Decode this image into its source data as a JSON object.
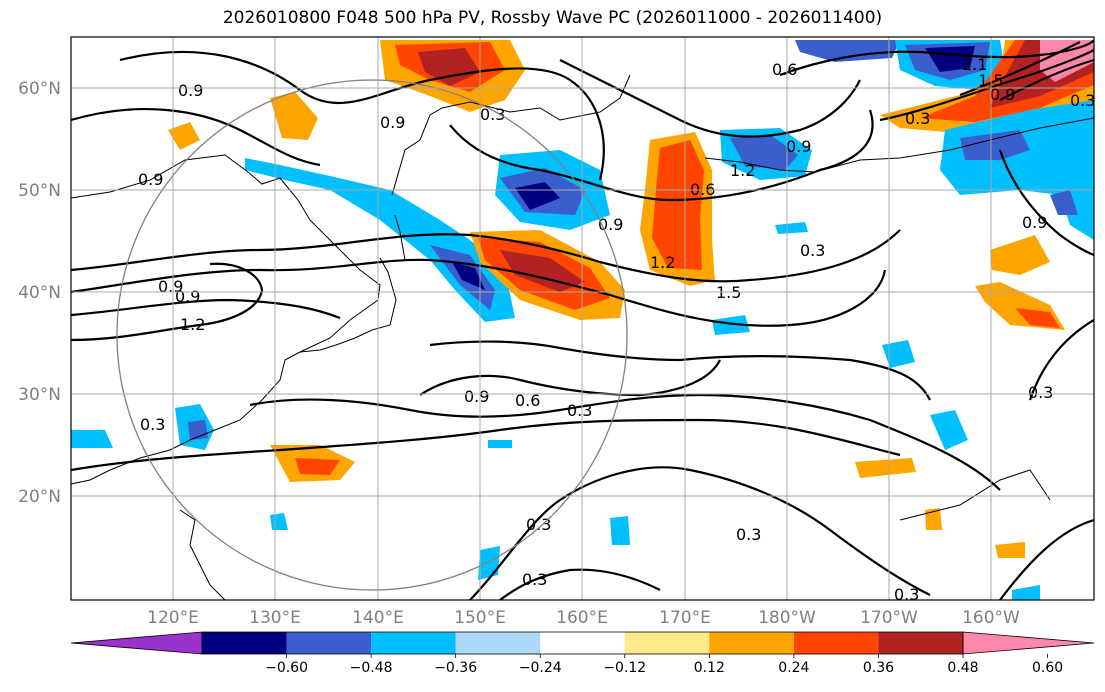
{
  "title": "2026010800 F048 500 hPa PV, Rossby Wave PC (2026011000 - 2026011400)",
  "map": {
    "lat_labels": [
      "60°N",
      "50°N",
      "40°N",
      "30°N",
      "20°N"
    ],
    "lon_labels": [
      "120°E",
      "130°E",
      "140°E",
      "150°E",
      "160°E",
      "170°E",
      "180°W",
      "170°W",
      "160°W"
    ],
    "extent": {
      "lon_min": 110,
      "lon_max": 210,
      "lat_min": 10,
      "lat_max": 65
    },
    "contour_labels": [
      "0.9",
      "0.9",
      "0.9",
      "0.9",
      "0.9",
      "1.2",
      "0.3",
      "0.6",
      "0.9",
      "1.2",
      "0.6",
      "0.9",
      "1.2",
      "1.5",
      "0.3",
      "0.9",
      "0.6",
      "0.3",
      "0.3",
      "0.3",
      "0.3",
      "0.3",
      "0.3",
      "0.3",
      "0.9",
      "2.1",
      "1.5",
      "0.9",
      "0.3",
      "0.3"
    ]
  },
  "colorbar": {
    "ticks": [
      "−0.60",
      "−0.48",
      "−0.36",
      "−0.24",
      "−0.12",
      "0.12",
      "0.24",
      "0.36",
      "0.48",
      "0.60"
    ],
    "colors": [
      "#9933cc",
      "#000080",
      "#3a5fcd",
      "#00bfff",
      "#add8f8",
      "#ffffff",
      "#ffe98a",
      "#ffa500",
      "#ff4500",
      "#b22222",
      "#ff88aa"
    ]
  }
}
